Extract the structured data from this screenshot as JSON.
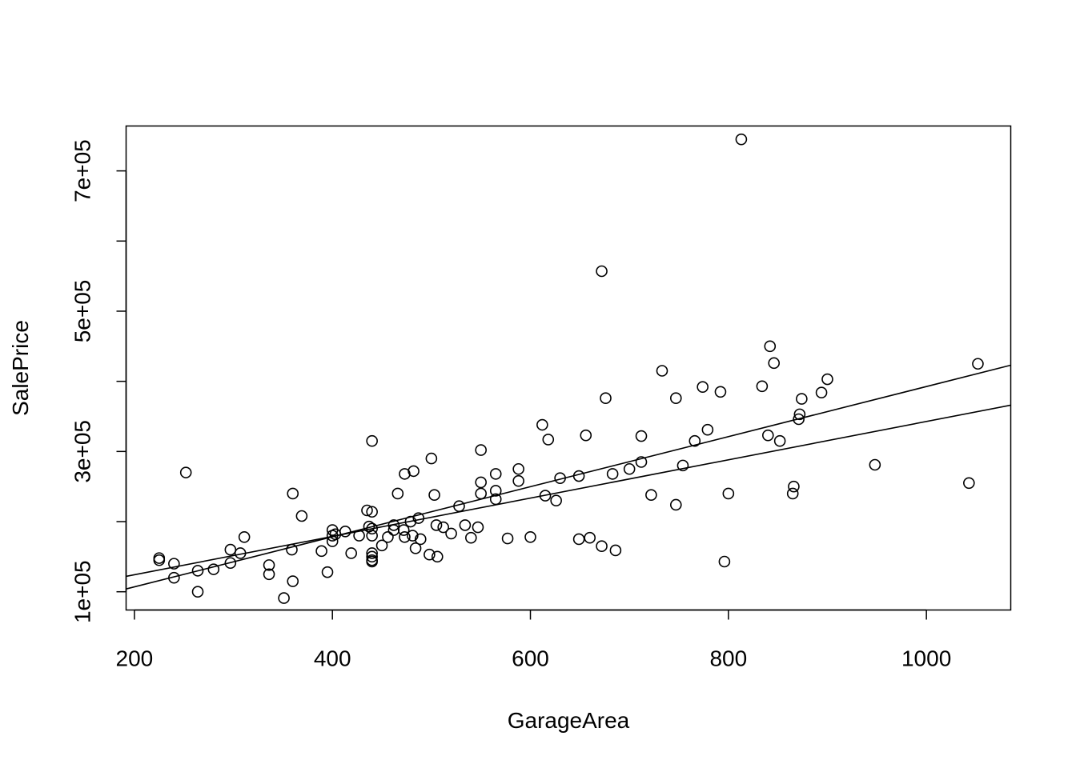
{
  "chart_data": {
    "type": "scatter",
    "title": "",
    "xlabel": "GarageArea",
    "ylabel": "SalePrice",
    "xlim": [
      191.6,
      1085.2
    ],
    "ylim": [
      74000,
      764000
    ],
    "x_ticks": [
      {
        "value": 200,
        "label": "200"
      },
      {
        "value": 400,
        "label": "400"
      },
      {
        "value": 600,
        "label": "600"
      },
      {
        "value": 800,
        "label": "800"
      },
      {
        "value": 1000,
        "label": "1000"
      }
    ],
    "y_ticks": [
      {
        "value": 100000,
        "label": "1e+05",
        "labeled": true
      },
      {
        "value": 200000,
        "label": "",
        "labeled": false
      },
      {
        "value": 300000,
        "label": "3e+05",
        "labeled": true
      },
      {
        "value": 400000,
        "label": "",
        "labeled": false
      },
      {
        "value": 500000,
        "label": "5e+05",
        "labeled": true
      },
      {
        "value": 600000,
        "label": "",
        "labeled": false
      },
      {
        "value": 700000,
        "label": "7e+05",
        "labeled": true
      }
    ],
    "grid": false,
    "legend": "none",
    "point_style": "open-circle",
    "color": "#000000",
    "points": [
      [
        225,
        148000
      ],
      [
        225,
        145000
      ],
      [
        240,
        140000
      ],
      [
        240,
        120000
      ],
      [
        252,
        270000
      ],
      [
        264,
        130000
      ],
      [
        264,
        100000
      ],
      [
        280,
        132000
      ],
      [
        297,
        160000
      ],
      [
        297,
        141000
      ],
      [
        307,
        155000
      ],
      [
        311,
        178000
      ],
      [
        336,
        138000
      ],
      [
        336,
        125000
      ],
      [
        351,
        91000
      ],
      [
        359,
        160000
      ],
      [
        360,
        240000
      ],
      [
        360,
        115000
      ],
      [
        369,
        208000
      ],
      [
        389,
        158000
      ],
      [
        395,
        128000
      ],
      [
        400,
        188000
      ],
      [
        400,
        180000
      ],
      [
        400,
        172000
      ],
      [
        403,
        182000
      ],
      [
        413,
        186000
      ],
      [
        419,
        155000
      ],
      [
        427,
        180000
      ],
      [
        435,
        216000
      ],
      [
        437,
        193000
      ],
      [
        440,
        214000
      ],
      [
        440,
        190000
      ],
      [
        440,
        180000
      ],
      [
        440,
        155000
      ],
      [
        440,
        150000
      ],
      [
        440,
        145000
      ],
      [
        440,
        143000
      ],
      [
        440,
        315000
      ],
      [
        450,
        166000
      ],
      [
        456,
        178000
      ],
      [
        462,
        195000
      ],
      [
        462,
        188000
      ],
      [
        466,
        240000
      ],
      [
        472,
        188000
      ],
      [
        473,
        178000
      ],
      [
        473,
        268000
      ],
      [
        479,
        200000
      ],
      [
        481,
        180000
      ],
      [
        482,
        272000
      ],
      [
        484,
        162000
      ],
      [
        487,
        205000
      ],
      [
        489,
        175000
      ],
      [
        498,
        153000
      ],
      [
        500,
        290000
      ],
      [
        503,
        238000
      ],
      [
        505,
        195000
      ],
      [
        506,
        150000
      ],
      [
        512,
        192000
      ],
      [
        520,
        183000
      ],
      [
        528,
        222000
      ],
      [
        534,
        195000
      ],
      [
        540,
        177000
      ],
      [
        547,
        192000
      ],
      [
        550,
        302000
      ],
      [
        550,
        256000
      ],
      [
        550,
        240000
      ],
      [
        565,
        268000
      ],
      [
        565,
        244000
      ],
      [
        565,
        232000
      ],
      [
        577,
        176000
      ],
      [
        588,
        258000
      ],
      [
        588,
        275000
      ],
      [
        600,
        178000
      ],
      [
        612,
        338000
      ],
      [
        615,
        237000
      ],
      [
        618,
        317000
      ],
      [
        626,
        230000
      ],
      [
        630,
        262000
      ],
      [
        649,
        175000
      ],
      [
        649,
        265000
      ],
      [
        656,
        323000
      ],
      [
        660,
        177000
      ],
      [
        672,
        165000
      ],
      [
        672,
        557000
      ],
      [
        676,
        376000
      ],
      [
        683,
        268000
      ],
      [
        686,
        159000
      ],
      [
        700,
        275000
      ],
      [
        712,
        322000
      ],
      [
        712,
        285000
      ],
      [
        722,
        238000
      ],
      [
        733,
        415000
      ],
      [
        747,
        376000
      ],
      [
        747,
        224000
      ],
      [
        754,
        280000
      ],
      [
        766,
        315000
      ],
      [
        774,
        392000
      ],
      [
        779,
        331000
      ],
      [
        792,
        385000
      ],
      [
        796,
        143000
      ],
      [
        800,
        240000
      ],
      [
        813,
        745000
      ],
      [
        834,
        393000
      ],
      [
        840,
        323000
      ],
      [
        842,
        450000
      ],
      [
        846,
        426000
      ],
      [
        852,
        315000
      ],
      [
        865,
        240000
      ],
      [
        866,
        250000
      ],
      [
        871,
        346000
      ],
      [
        872,
        353000
      ],
      [
        874,
        375000
      ],
      [
        894,
        384000
      ],
      [
        900,
        403000
      ],
      [
        948,
        281000
      ],
      [
        1043,
        255000
      ],
      [
        1052,
        425000
      ]
    ],
    "lines": [
      {
        "x": [
          191.6,
          1085.2
        ],
        "y": [
          104000,
          423000
        ]
      },
      {
        "x": [
          191.6,
          1085.2
        ],
        "y": [
          122000,
          366000
        ]
      }
    ]
  }
}
